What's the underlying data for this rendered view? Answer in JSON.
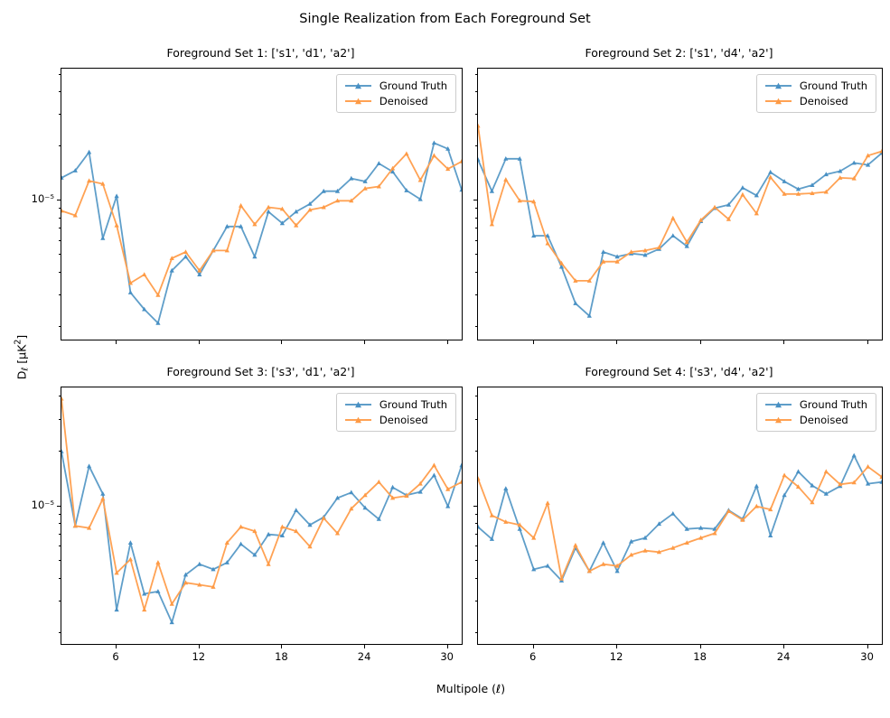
{
  "figure": {
    "title": "Single Realization from Each Foreground Set",
    "xlabel": "Multipole (ℓ)",
    "ylabel_d": "D",
    "ylabel_sub": "ℓ",
    "ylabel_units_open": " [",
    "ylabel_mu": "μK",
    "ylabel_exp": "2",
    "ylabel_units_close": "]"
  },
  "legend": {
    "items": [
      {
        "label": "Ground Truth"
      },
      {
        "label": "Denoised"
      }
    ]
  },
  "colors": {
    "ground_truth_line": "#5f9ec9",
    "ground_truth_marker": "#4890c4",
    "denoised_line": "#ffa254",
    "denoised_marker": "#fe9a45",
    "spine": "#000000",
    "tick": "#000000",
    "legend_border": "#cccccc",
    "background": "#ffffff",
    "text": "#000000"
  },
  "axis": {
    "xticks": [
      6,
      12,
      18,
      24,
      30
    ],
    "ytick_label": "10⁻⁵",
    "ytick_value": 1e-05,
    "yscale": "log",
    "xlim": [
      2,
      31
    ]
  },
  "chart_data": [
    {
      "type": "line",
      "title": "Foreground Set 1: ['s1', 'd1', 'a2']",
      "xlabel": "Multipole (ℓ)",
      "ylabel": "D_ℓ [μK²]",
      "yscale": "log",
      "ylim": [
        1.7e-06,
        5.4e-05
      ],
      "xticks": [
        6,
        12,
        18,
        24,
        30
      ],
      "x": [
        2,
        3,
        4,
        5,
        6,
        7,
        8,
        9,
        10,
        11,
        12,
        13,
        14,
        15,
        16,
        17,
        18,
        19,
        20,
        21,
        22,
        23,
        24,
        25,
        26,
        27,
        28,
        29,
        30,
        31
      ],
      "series": [
        {
          "name": "Ground Truth",
          "values": [
            1.34e-05,
            1.47e-05,
            1.86e-05,
            6.2e-06,
            1.06e-05,
            3.1e-06,
            2.5e-06,
            2.1e-06,
            4.1e-06,
            4.9e-06,
            3.9e-06,
            5.3e-06,
            7.2e-06,
            7.2e-06,
            4.9e-06,
            8.7e-06,
            7.5e-06,
            8.7e-06,
            9.6e-06,
            1.13e-05,
            1.13e-05,
            1.33e-05,
            1.28e-05,
            1.61e-05,
            1.45e-05,
            1.14e-05,
            1.02e-05,
            2.09e-05,
            1.94e-05,
            1.15e-05
          ]
        },
        {
          "name": "Denoised",
          "values": [
            8.8e-06,
            8.3e-06,
            1.29e-05,
            1.24e-05,
            7.3e-06,
            3.5e-06,
            3.9e-06,
            3e-06,
            4.8e-06,
            5.2e-06,
            4.1e-06,
            5.3e-06,
            5.3e-06,
            9.4e-06,
            7.4e-06,
            9.2e-06,
            9e-06,
            7.3e-06,
            8.9e-06,
            9.2e-06,
            1e-05,
            1e-05,
            1.17e-05,
            1.2e-05,
            1.51e-05,
            1.82e-05,
            1.3e-05,
            1.78e-05,
            1.5e-05,
            1.65e-05
          ]
        }
      ]
    },
    {
      "type": "line",
      "title": "Foreground Set 2: ['s1', 'd4', 'a2']",
      "xlabel": "Multipole (ℓ)",
      "ylabel": "D_ℓ [μK²]",
      "yscale": "log",
      "ylim": [
        1.7e-06,
        5.4e-05
      ],
      "xticks": [
        6,
        12,
        18,
        24,
        30
      ],
      "x": [
        2,
        3,
        4,
        5,
        6,
        7,
        8,
        9,
        10,
        11,
        12,
        13,
        14,
        15,
        16,
        17,
        18,
        19,
        20,
        21,
        22,
        23,
        24,
        25,
        26,
        27,
        28,
        29,
        30,
        31
      ],
      "series": [
        {
          "name": "Ground Truth",
          "values": [
            1.69e-05,
            1.13e-05,
            1.71e-05,
            1.71e-05,
            6.4e-06,
            6.4e-06,
            4.3e-06,
            2.7e-06,
            2.3e-06,
            5.2e-06,
            4.9e-06,
            5.1e-06,
            5e-06,
            5.4e-06,
            6.4e-06,
            5.6e-06,
            7.7e-06,
            9.1e-06,
            9.5e-06,
            1.18e-05,
            1.07e-05,
            1.44e-05,
            1.28e-05,
            1.16e-05,
            1.22e-05,
            1.4e-05,
            1.46e-05,
            1.62e-05,
            1.58e-05,
            1.84e-05
          ]
        },
        {
          "name": "Denoised",
          "values": [
            2.6e-05,
            7.4e-06,
            1.31e-05,
            1e-05,
            9.9e-06,
            5.8e-06,
            4.5e-06,
            3.6e-06,
            3.6e-06,
            4.6e-06,
            4.6e-06,
            5.2e-06,
            5.3e-06,
            5.5e-06,
            8e-06,
            5.9e-06,
            7.8e-06,
            9.2e-06,
            7.9e-06,
            1.08e-05,
            8.5e-06,
            1.35e-05,
            1.09e-05,
            1.09e-05,
            1.1e-05,
            1.12e-05,
            1.34e-05,
            1.33e-05,
            1.78e-05,
            1.88e-05
          ]
        }
      ]
    },
    {
      "type": "line",
      "title": "Foreground Set 3: ['s3', 'd1', 'a2']",
      "xlabel": "Multipole (ℓ)",
      "ylabel": "D_ℓ [μK²]",
      "yscale": "log",
      "ylim": [
        1.75e-06,
        4.5e-05
      ],
      "xticks": [
        6,
        12,
        18,
        24,
        30
      ],
      "x": [
        2,
        3,
        4,
        5,
        6,
        7,
        8,
        9,
        10,
        11,
        12,
        13,
        14,
        15,
        16,
        17,
        18,
        19,
        20,
        21,
        22,
        23,
        24,
        25,
        26,
        27,
        28,
        29,
        30,
        31
      ],
      "series": [
        {
          "name": "Ground Truth",
          "values": [
            2e-05,
            7.8e-06,
            1.66e-05,
            1.17e-05,
            2.7e-06,
            6.3e-06,
            3.3e-06,
            3.4e-06,
            2.3e-06,
            4.2e-06,
            4.8e-06,
            4.5e-06,
            4.9e-06,
            6.2e-06,
            5.4e-06,
            7e-06,
            6.9e-06,
            9.5e-06,
            7.9e-06,
            8.7e-06,
            1.11e-05,
            1.19e-05,
            9.8e-06,
            8.5e-06,
            1.27e-05,
            1.15e-05,
            1.2e-05,
            1.48e-05,
            1e-05,
            1.68e-05
          ]
        },
        {
          "name": "Denoised",
          "values": [
            3.9e-05,
            7.8e-06,
            7.6e-06,
            1.1e-05,
            4.3e-06,
            5.1e-06,
            2.7e-06,
            4.9e-06,
            2.9e-06,
            3.8e-06,
            3.7e-06,
            3.6e-06,
            6.3e-06,
            7.7e-06,
            7.3e-06,
            4.8e-06,
            7.7e-06,
            7.3e-06,
            6e-06,
            8.6e-06,
            7.1e-06,
            9.7e-06,
            1.15e-05,
            1.36e-05,
            1.11e-05,
            1.14e-05,
            1.33e-05,
            1.68e-05,
            1.24e-05,
            1.36e-05
          ]
        }
      ]
    },
    {
      "type": "line",
      "title": "Foreground Set 4: ['s3', 'd4', 'a2']",
      "xlabel": "Multipole (ℓ)",
      "ylabel": "D_ℓ [μK²]",
      "yscale": "log",
      "ylim": [
        1.75e-06,
        4.5e-05
      ],
      "xticks": [
        6,
        12,
        18,
        24,
        30
      ],
      "x": [
        2,
        3,
        4,
        5,
        6,
        7,
        8,
        9,
        10,
        11,
        12,
        13,
        14,
        15,
        16,
        17,
        18,
        19,
        20,
        21,
        22,
        23,
        24,
        25,
        26,
        27,
        28,
        29,
        30,
        31
      ],
      "series": [
        {
          "name": "Ground Truth",
          "values": [
            7.7e-06,
            6.6e-06,
            1.25e-05,
            7.5e-06,
            4.5e-06,
            4.7e-06,
            3.9e-06,
            5.9e-06,
            4.4e-06,
            6.3e-06,
            4.4e-06,
            6.4e-06,
            6.7e-06,
            8e-06,
            9.1e-06,
            7.5e-06,
            7.6e-06,
            7.5e-06,
            9.5e-06,
            8.5e-06,
            1.29e-05,
            6.9e-06,
            1.15e-05,
            1.55e-05,
            1.3e-05,
            1.17e-05,
            1.29e-05,
            1.9e-05,
            1.33e-05,
            1.36e-05
          ]
        },
        {
          "name": "Denoised",
          "values": [
            1.42e-05,
            8.9e-06,
            8.2e-06,
            7.9e-06,
            6.7e-06,
            1.04e-05,
            4e-06,
            6.1e-06,
            4.4e-06,
            4.8e-06,
            4.7e-06,
            5.4e-06,
            5.7e-06,
            5.6e-06,
            5.9e-06,
            6.3e-06,
            6.7e-06,
            7.1e-06,
            9.4e-06,
            8.4e-06,
            1e-05,
            9.6e-06,
            1.48e-05,
            1.28e-05,
            1.05e-05,
            1.55e-05,
            1.32e-05,
            1.35e-05,
            1.65e-05,
            1.45e-05
          ]
        }
      ]
    }
  ]
}
